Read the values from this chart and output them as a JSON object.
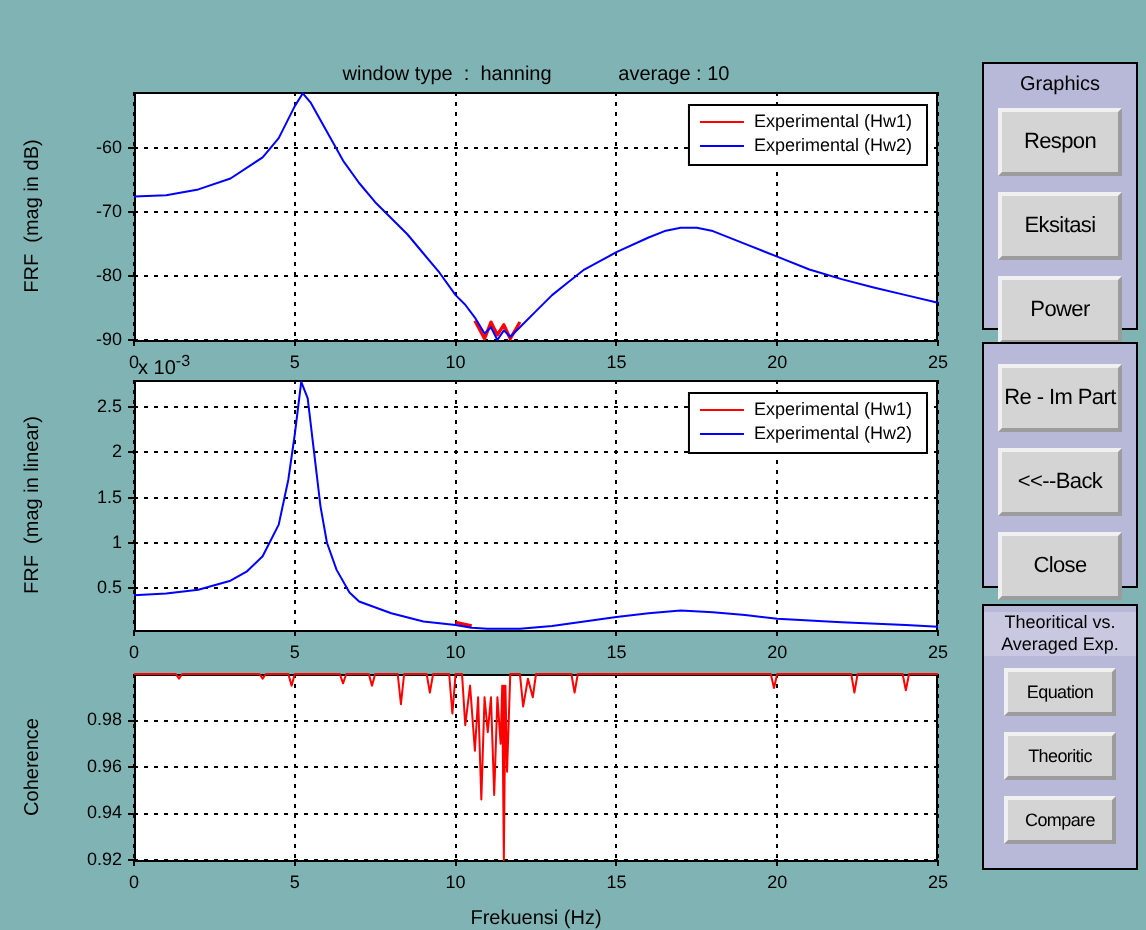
{
  "chart_data": [
    {
      "type": "line",
      "title": "window type  :  hanning            average : 10",
      "ylabel": "FRF  (mag in dB)",
      "legend": "top right",
      "grid": true,
      "x": [
        0,
        1,
        2,
        3,
        4,
        4.5,
        5,
        5.25,
        5.5,
        6,
        6.5,
        7,
        7.5,
        8,
        8.5,
        9,
        9.5,
        10,
        10.3,
        10.6,
        10.9,
        11.1,
        11.3,
        11.5,
        11.7,
        12,
        12.5,
        13,
        13.5,
        14,
        15,
        16,
        16.5,
        17,
        17.5,
        18,
        19,
        20,
        21,
        22,
        23,
        24,
        25
      ],
      "series": [
        {
          "name": "Experimental (Hw1)",
          "color": "#ff0000",
          "values": [
            null,
            null,
            null,
            null,
            null,
            null,
            null,
            null,
            null,
            null,
            null,
            null,
            null,
            null,
            null,
            null,
            null,
            null,
            null,
            -87,
            -89.8,
            -87.2,
            -89.2,
            -87.6,
            -89.8,
            -87.2,
            null,
            null,
            null,
            null,
            null,
            null,
            null,
            null,
            null,
            null,
            null,
            null,
            null,
            null,
            null,
            null,
            null
          ]
        },
        {
          "name": "Experimental (Hw2)",
          "color": "#0000ff",
          "values": [
            -67.6,
            -67.4,
            -66.5,
            -64.8,
            -61.5,
            -58.5,
            -53.5,
            -51.5,
            -53,
            -57.5,
            -62,
            -65.5,
            -68.5,
            -71,
            -73.5,
            -76.5,
            -79.5,
            -83,
            -84.5,
            -86.5,
            -89,
            -88,
            -90,
            -88.5,
            -89.5,
            -88,
            -85.5,
            -83,
            -81,
            -79,
            -76.3,
            -74,
            -73,
            -72.5,
            -72.5,
            -73,
            -75,
            -77,
            -79,
            -80.5,
            -81.8,
            -83,
            -84.2
          ]
        }
      ],
      "xlim": [
        0,
        25
      ],
      "xticks": [
        0,
        5,
        10,
        15,
        20,
        25
      ],
      "ylim": [
        -90,
        -51.3
      ],
      "yticks": [
        -90,
        -80,
        -70,
        -60
      ]
    },
    {
      "type": "line",
      "ylabel": "FRF  (mag in linear)",
      "legend": "top right",
      "grid": true,
      "annotations": [
        "x 10$^{-3}$"
      ],
      "x": [
        0,
        1,
        2,
        3,
        3.5,
        4,
        4.5,
        4.8,
        5,
        5.2,
        5.4,
        5.6,
        5.8,
        6,
        6.3,
        6.7,
        7,
        8,
        9,
        10,
        10.5,
        11,
        12,
        13,
        14,
        15,
        16,
        17,
        18,
        19,
        20,
        22,
        24,
        25
      ],
      "series": [
        {
          "name": "Experimental (Hw1)",
          "color": "#ff0000",
          "values": [
            null,
            null,
            null,
            null,
            null,
            null,
            null,
            null,
            null,
            null,
            null,
            null,
            null,
            null,
            null,
            null,
            null,
            null,
            null,
            0.12,
            0.08,
            null,
            null,
            null,
            null,
            null,
            null,
            null,
            null,
            null,
            null,
            null,
            null,
            null
          ]
        },
        {
          "name": "Experimental (Hw2)",
          "color": "#0000ff",
          "values": [
            0.42,
            0.44,
            0.48,
            0.58,
            0.68,
            0.85,
            1.2,
            1.7,
            2.2,
            2.78,
            2.6,
            2.0,
            1.4,
            1.0,
            0.7,
            0.45,
            0.35,
            0.22,
            0.13,
            0.09,
            0.06,
            0.05,
            0.05,
            0.08,
            0.13,
            0.18,
            0.22,
            0.25,
            0.23,
            0.2,
            0.16,
            0.12,
            0.09,
            0.07
          ]
        }
      ],
      "xlim": [
        0,
        25
      ],
      "xticks": [
        0,
        5,
        10,
        15,
        20,
        25
      ],
      "ylim": [
        0.035,
        2.8
      ],
      "yticks": [
        0.5,
        1,
        1.5,
        2,
        2.5
      ]
    },
    {
      "type": "line",
      "xlabel": "Frekuensi (Hz)",
      "ylabel": "Coherence",
      "grid": true,
      "x": [
        0,
        1.3,
        1.4,
        1.5,
        3.9,
        4,
        4.1,
        4.8,
        4.9,
        5.0,
        6.4,
        6.5,
        6.6,
        7.3,
        7.4,
        7.5,
        8.2,
        8.3,
        8.4,
        9.1,
        9.2,
        9.3,
        9.8,
        9.9,
        10.0,
        10.2,
        10.3,
        10.45,
        10.6,
        10.7,
        10.8,
        10.9,
        11.0,
        11.1,
        11.2,
        11.3,
        11.4,
        11.45,
        11.5,
        11.55,
        11.6,
        11.7,
        12.0,
        12.1,
        12.25,
        12.4,
        12.5,
        13.6,
        13.7,
        13.8,
        19.8,
        19.9,
        20.0,
        22.3,
        22.4,
        22.5,
        23.9,
        24.0,
        24.1,
        25
      ],
      "series": [
        {
          "color": "#ff0000",
          "values": [
            1,
            1,
            0.998,
            1,
            1,
            0.998,
            1,
            1,
            0.995,
            1,
            1,
            0.996,
            1,
            1,
            0.995,
            1,
            1,
            0.987,
            1,
            1,
            0.992,
            1,
            1,
            0.983,
            1,
            1,
            0.978,
            0.995,
            0.967,
            0.99,
            0.946,
            0.99,
            0.975,
            0.99,
            0.948,
            0.99,
            0.97,
            0.995,
            0.92,
            0.995,
            0.958,
            1,
            1,
            0.986,
            0.998,
            0.99,
            1,
            1,
            0.992,
            1,
            1,
            0.994,
            1,
            1,
            0.992,
            1,
            1,
            0.993,
            1,
            1
          ]
        }
      ],
      "xlim": [
        0,
        25
      ],
      "xticks": [
        0,
        5,
        10,
        15,
        20,
        25
      ],
      "ylim": [
        0.92,
        1.0
      ],
      "yticks": [
        0.92,
        0.94,
        0.96,
        0.98
      ]
    },
    {
      "type": "other",
      "title": "Graphics",
      "annotations": [
        "Respon",
        "Eksitasi",
        "Power"
      ]
    },
    {
      "type": "other",
      "annotations": [
        "Re - Im Part",
        "<<--Back",
        "Close"
      ]
    },
    {
      "type": "other",
      "title": "Theoritical vs. Averaged Exp.",
      "annotations": [
        "Equation",
        "Theoritic",
        "Compare"
      ]
    }
  ]
}
